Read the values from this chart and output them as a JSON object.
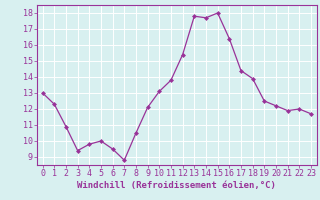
{
  "x": [
    0,
    1,
    2,
    3,
    4,
    5,
    6,
    7,
    8,
    9,
    10,
    11,
    12,
    13,
    14,
    15,
    16,
    17,
    18,
    19,
    20,
    21,
    22,
    23
  ],
  "y": [
    13.0,
    12.3,
    10.9,
    9.4,
    9.8,
    10.0,
    9.5,
    8.8,
    10.5,
    12.1,
    13.1,
    13.8,
    15.4,
    17.8,
    17.7,
    18.0,
    16.4,
    14.4,
    13.9,
    12.5,
    12.2,
    11.9,
    12.0,
    11.7
  ],
  "line_color": "#993399",
  "marker": "D",
  "marker_size": 2.0,
  "linewidth": 0.9,
  "bg_color": "#d8f0f0",
  "grid_color": "#ffffff",
  "xlabel": "Windchill (Refroidissement éolien,°C)",
  "xlabel_fontsize": 6.5,
  "tick_fontsize": 6.0,
  "xlim": [
    -0.5,
    23.5
  ],
  "ylim": [
    8.5,
    18.5
  ],
  "yticks": [
    9,
    10,
    11,
    12,
    13,
    14,
    15,
    16,
    17,
    18
  ],
  "xticks": [
    0,
    1,
    2,
    3,
    4,
    5,
    6,
    7,
    8,
    9,
    10,
    11,
    12,
    13,
    14,
    15,
    16,
    17,
    18,
    19,
    20,
    21,
    22,
    23
  ],
  "tick_color": "#993399",
  "label_color": "#993399",
  "spine_color": "#993399"
}
